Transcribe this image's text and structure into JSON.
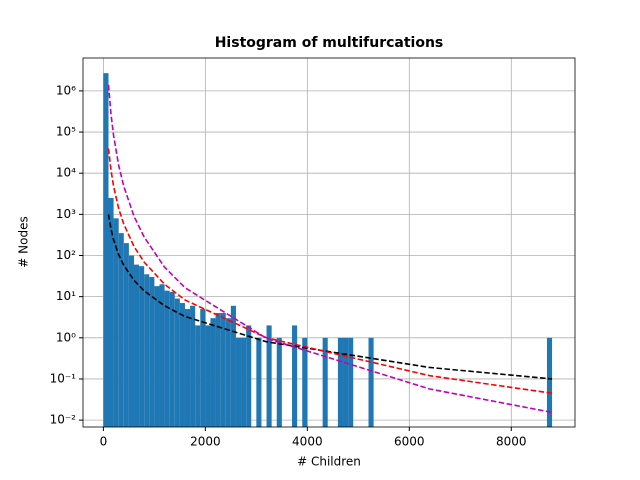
{
  "chart_data": {
    "type": "histogram",
    "title": "Histogram of multifurcations",
    "xlabel": "# Children",
    "ylabel": "# Nodes",
    "bins": [
      0,
      100,
      200,
      300,
      400,
      500,
      600,
      700,
      800,
      900,
      1000,
      1100,
      1200,
      1300,
      1400,
      1500,
      1600,
      1700,
      1800,
      1900,
      2000,
      2100,
      2200,
      2300,
      2400,
      2500,
      2600,
      2700,
      2800,
      2900,
      3000,
      3100,
      3200,
      3300,
      3400,
      3500,
      3600,
      3700,
      3800,
      3900,
      4000,
      4100,
      4200,
      4300,
      4400,
      4500,
      4600,
      4700,
      4800,
      4900,
      5000,
      5100,
      5200,
      5300,
      5400,
      5500,
      5600,
      5700,
      5800,
      5900,
      6000,
      6100,
      6200,
      6300,
      6400,
      6500,
      6600,
      6700,
      6800,
      6900,
      7000,
      7100,
      7200,
      7300,
      7400,
      7500,
      7600,
      7700,
      7800,
      7900,
      8000,
      8100,
      8200,
      8300,
      8400,
      8500,
      8600,
      8700,
      8800
    ],
    "counts": [
      2700000,
      2500,
      800,
      350,
      200,
      100,
      60,
      55,
      35,
      30,
      18,
      20,
      14,
      13,
      9,
      7,
      5,
      6,
      2,
      5,
      2,
      3,
      4,
      4,
      3,
      6,
      1,
      1,
      2,
      0,
      1,
      0,
      2,
      0,
      1,
      0,
      0,
      2,
      0,
      1,
      0,
      0,
      0,
      1,
      0,
      0,
      1,
      1,
      1,
      0,
      0,
      0,
      1,
      0,
      0,
      0,
      0,
      0,
      0,
      0,
      0,
      0,
      0,
      0,
      0,
      0,
      0,
      0,
      0,
      0,
      0,
      0,
      0,
      0,
      0,
      0,
      0,
      0,
      0,
      0,
      0,
      0,
      0,
      0,
      0,
      0,
      0,
      1
    ],
    "color": "#1f77b4",
    "lines": [
      {
        "color": "#000000",
        "x": [
          100,
          150,
          200,
          300,
          400,
          600,
          800,
          1200,
          1600,
          3200,
          6400,
          8800
        ],
        "y": [
          1000,
          434,
          240,
          104,
          58,
          25,
          13.8,
          6.0,
          3.3,
          0.8,
          0.19,
          0.1
        ]
      },
      {
        "color": "#ff0000",
        "x": [
          100,
          150,
          200,
          300,
          400,
          600,
          800,
          1200,
          1600,
          3200,
          6400,
          8800
        ],
        "y": [
          40000,
          11600,
          4800,
          1380,
          578,
          166,
          69,
          20,
          8.3,
          1.0,
          0.12,
          0.045
        ]
      },
      {
        "color": "#bf00bf",
        "x": [
          100,
          150,
          200,
          300,
          400,
          600,
          800,
          1200,
          1600,
          3200,
          6400,
          8800
        ],
        "y": [
          1400000,
          266000,
          82000,
          15400,
          4800,
          900,
          280,
          52,
          16.5,
          0.97,
          0.057,
          0.0154
        ]
      }
    ],
    "xlim": [
      -400,
      9250
    ],
    "ylim": [
      0.0068,
      6300000
    ],
    "ylog": true,
    "grid": true,
    "xticks": [
      0,
      2000,
      4000,
      6000,
      8000
    ],
    "yticks": [
      {
        "value": 0.01,
        "label": "10⁻²"
      },
      {
        "value": 0.1,
        "label": "10⁻¹"
      },
      {
        "value": 1,
        "label": "10⁰"
      },
      {
        "value": 10,
        "label": "10¹"
      },
      {
        "value": 100,
        "label": "10²"
      },
      {
        "value": 1000,
        "label": "10³"
      },
      {
        "value": 10000,
        "label": "10⁴"
      },
      {
        "value": 100000,
        "label": "10⁵"
      },
      {
        "value": 1000000,
        "label": "10⁶"
      }
    ]
  }
}
